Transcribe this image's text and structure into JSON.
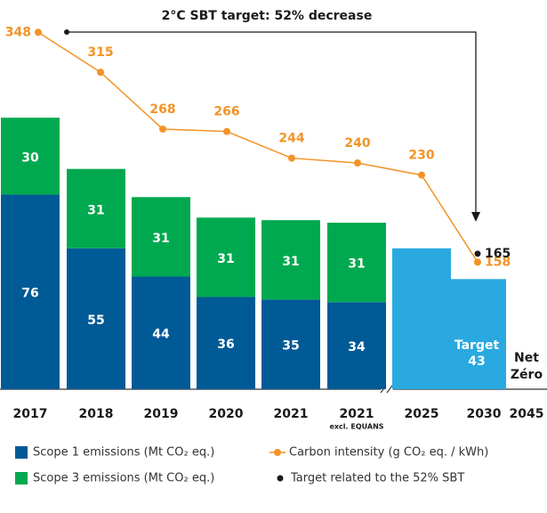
{
  "chart_data": {
    "type": "bar",
    "title": "2°C SBT target: 52% decrease",
    "categories": [
      "2017",
      "2018",
      "2019",
      "2020",
      "2021",
      "2021",
      "2025",
      "2030",
      "2045"
    ],
    "category_notes": [
      null,
      null,
      null,
      null,
      null,
      "excl. EQUANS",
      null,
      null,
      null
    ],
    "stacked": true,
    "ylim": [
      0,
      145
    ],
    "y2lim": [
      53,
      360
    ],
    "legend": "bottom",
    "series": [
      {
        "name": "Scope 1 emissions (Mt CO₂ eq.)",
        "color": "#005a96",
        "type": "bar",
        "values": [
          76,
          55,
          44,
          36,
          35,
          34,
          null,
          null,
          null
        ]
      },
      {
        "name": "Scope 3 emissions (Mt CO₂ eq.)",
        "color": "#00a94f",
        "type": "bar",
        "values": [
          30,
          31,
          31,
          31,
          31,
          31,
          null,
          null,
          null
        ]
      },
      {
        "name": "Carbon intensity (g CO₂ eq. / kWh)",
        "color": "#f39325",
        "type": "line",
        "axis": "y2",
        "values": [
          348,
          315,
          268,
          266,
          244,
          240,
          230,
          158,
          null
        ]
      },
      {
        "name": "Target related to the 52% SBT",
        "color": "#1a1a1a",
        "type": "scatter",
        "axis": "y2",
        "values": [
          null,
          null,
          null,
          null,
          null,
          null,
          null,
          165,
          null
        ]
      }
    ],
    "projection": {
      "color": "#29a9e0",
      "values": [
        null,
        null,
        null,
        null,
        null,
        null,
        55,
        43,
        null
      ],
      "labels": [
        null,
        null,
        null,
        null,
        null,
        null,
        null,
        "Target",
        null
      ]
    },
    "net_zero_lines": [
      "Net",
      "Zéro"
    ]
  }
}
